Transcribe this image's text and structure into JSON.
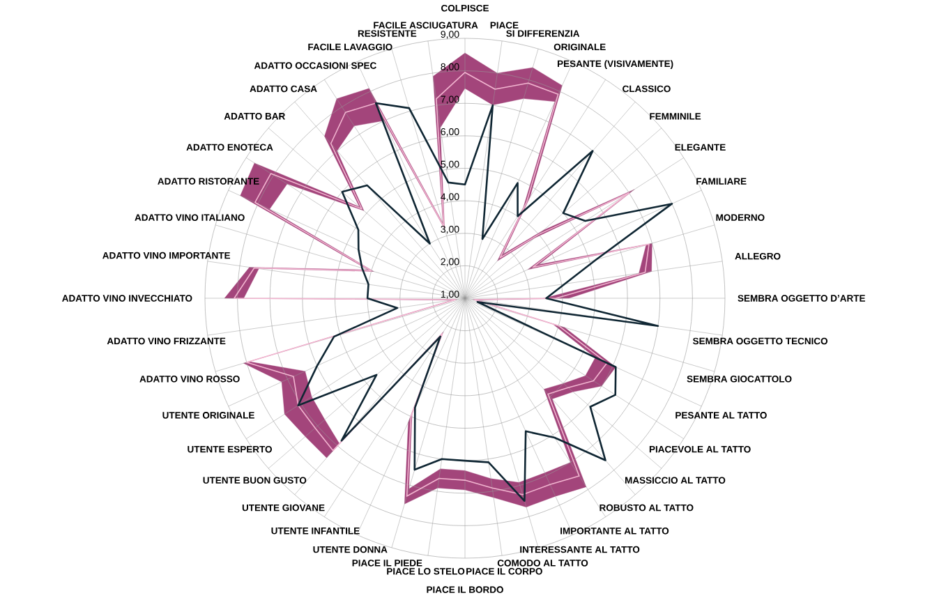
{
  "chart_data": {
    "type": "radar",
    "categories": [
      "COLPISCE",
      "PIACE",
      "SI DIFFERENZIA",
      "ORIGINALE",
      "PESANTE (VISIVAMENTE)",
      "CLASSICO",
      "FEMMINILE",
      "ELEGANTE",
      "FAMILIARE",
      "MODERNO",
      "ALLEGRO",
      "SEMBRA OGGETTO D’ARTE",
      "SEMBRA OGGETTO TECNICO",
      "SEMBRA GIOCATTOLO",
      "PESANTE AL TATTO",
      "PIACEVOLE AL TATTO",
      "MASSICCIO AL TATTO",
      "ROBUSTO AL TATTO",
      "IMPORTANTE AL TATTO",
      "INTERESSANTE AL TATTO",
      "COMODO AL TATTO",
      "PIACE IL CORPO",
      "PIACE IL BORDO",
      "PIACE LO STELO",
      "PIACE IL PIEDE",
      "UTENTE DONNA",
      "UTENTE INFANTILE",
      "UTENTE GIOVANE",
      "UTENTE BUON GUSTO",
      "UTENTE ESPERTO",
      "UTENTE ORIGINALE",
      "ADATTO VINO ROSSO",
      "ADATTO VINO FRIZZANTE",
      "ADATTO VINO INVECCHIATO",
      "ADATTO VINO IMPORTANTE",
      "ADATTO VINO ITALIANO",
      "ADATTO RISTORANTE",
      "ADATTO ENOTECA",
      "ADATTO BAR",
      "ADATTO CASA",
      "ADATTO OCCASIONI SPEC",
      "FACILE LAVAGGIO",
      "RESISTENTE",
      "FACILE ASCIUGATURA"
    ],
    "series": [
      {
        "type": "area",
        "color": "#a3457b",
        "values": [
          8.55,
          8.0,
          8.4,
          8.2,
          4.7,
          2.8,
          4.2,
          7.2,
          3.5,
          7.0,
          6.8,
          4.2,
          1.4,
          4.2,
          6.1,
          6.0,
          5.4,
          5.1,
          7.9,
          7.7,
          7.7,
          7.2,
          6.9,
          6.9,
          7.6,
          5.2,
          2.4,
          7.5,
          7.5,
          7.6,
          7.2,
          8.1,
          1.4,
          8.4,
          7.7,
          4.1,
          8.6,
          8.7,
          5.3,
          7.6,
          8.3,
          8.1,
          3.4,
          7.9
        ]
      },
      {
        "type": "area",
        "color": "#ffffff",
        "values": [
          7.45,
          7.0,
          7.4,
          7.65,
          4.3,
          2.5,
          3.8,
          6.9,
          3.1,
          6.8,
          6.4,
          3.4,
          1.2,
          3.8,
          5.4,
          5.4,
          5.0,
          4.7,
          7.0,
          6.9,
          6.9,
          6.6,
          6.3,
          6.3,
          7.1,
          4.9,
          2.2,
          6.9,
          6.7,
          6.6,
          6.4,
          7.9,
          1.2,
          7.8,
          7.4,
          3.9,
          7.6,
          7.5,
          5.1,
          7.0,
          7.3,
          7.0,
          3.2,
          6.3
        ]
      },
      {
        "color": "#f2b5d0",
        "values": [
          7.95,
          7.5,
          7.9,
          7.9,
          4.5,
          2.65,
          4.0,
          7.0,
          3.3,
          6.9,
          6.6,
          3.8,
          1.3,
          4.0,
          5.8,
          5.7,
          5.2,
          4.9,
          7.5,
          7.3,
          7.3,
          6.9,
          6.6,
          6.6,
          7.35,
          5.0,
          2.3,
          7.2,
          7.1,
          7.1,
          6.8,
          8.0,
          1.3,
          8.1,
          7.55,
          4.0,
          8.1,
          8.1,
          5.2,
          7.3,
          7.8,
          7.6,
          3.3,
          7.2
        ]
      },
      {
        "color": "#0f2633",
        "values": [
          4.5,
          7.0,
          2.9,
          4.9,
          4.0,
          7.0,
          5.0,
          5.4,
          8.0,
          5.2,
          4.1,
          3.5,
          7.0,
          1.4,
          6.1,
          6.5,
          6.1,
          7.6,
          6.1,
          5.5,
          7.5,
          6.1,
          6.0,
          6.0,
          6.5,
          4.7,
          2.4,
          6.8,
          4.6,
          7.1,
          6.0,
          5.2,
          3.1,
          4.0,
          4.0,
          4.3,
          4.6,
          4.9,
          6.0,
          5.6,
          3.0,
          7.6,
          7.1,
          4.6
        ]
      }
    ],
    "ylim": [
      1,
      9
    ],
    "yticks": [
      {
        "value": 1,
        "label": "1,00"
      },
      {
        "value": 2,
        "label": "2,00"
      },
      {
        "value": 3,
        "label": "3,00"
      },
      {
        "value": 4,
        "label": "4,00"
      },
      {
        "value": 5,
        "label": "5,00"
      },
      {
        "value": 6,
        "label": "6,00"
      },
      {
        "value": 7,
        "label": "7,00"
      },
      {
        "value": 8,
        "label": "8,00"
      },
      {
        "value": 9,
        "label": "9,00"
      }
    ],
    "grid": true
  }
}
